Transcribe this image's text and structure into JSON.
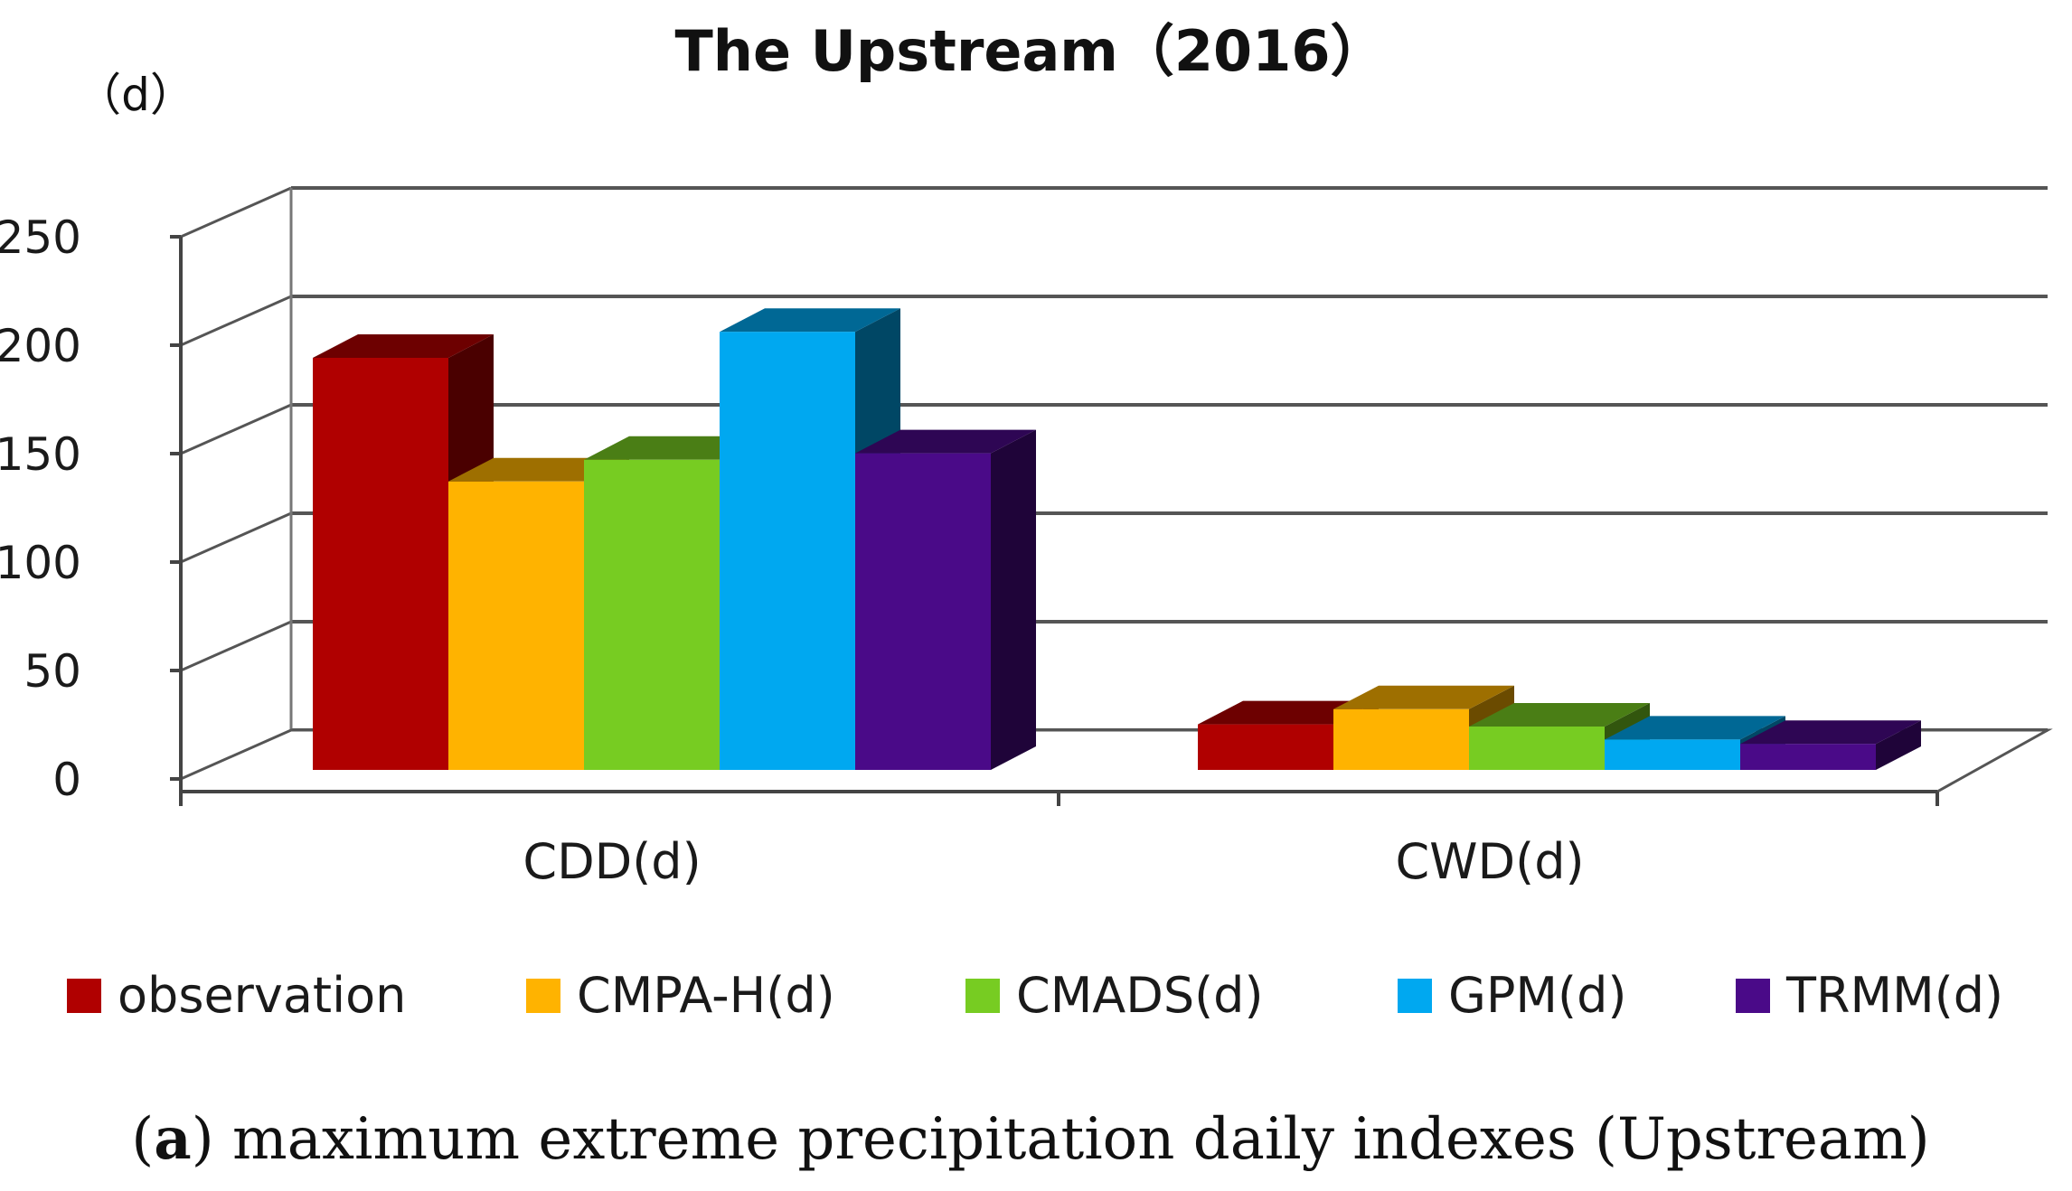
{
  "chart_data": {
    "type": "bar",
    "title": "The Upstream（2016）",
    "ylabel": "（d）",
    "xlabel": "",
    "categories": [
      "CDD(d)",
      "CWD(d)"
    ],
    "series": [
      {
        "name": "observation",
        "values": [
          190,
          21
        ],
        "color": "#B00000"
      },
      {
        "name": "CMPA-H(d)",
        "values": [
          133,
          28
        ],
        "color": "#FFB300"
      },
      {
        "name": "CMADS(d)",
        "values": [
          143,
          20
        ],
        "color": "#77CC22"
      },
      {
        "name": "GPM(d)",
        "values": [
          202,
          14
        ],
        "color": "#00A8F0"
      },
      {
        "name": "TRMM(d)",
        "values": [
          146,
          12
        ],
        "color": "#4A0A88"
      }
    ],
    "ylim": [
      0,
      250
    ],
    "yticks": [
      0,
      50,
      100,
      150,
      200,
      250
    ],
    "grid": true,
    "legend": "bottom"
  },
  "caption": {
    "label": "a",
    "text": "maximum extreme precipitation daily indexes (Upstream)"
  }
}
